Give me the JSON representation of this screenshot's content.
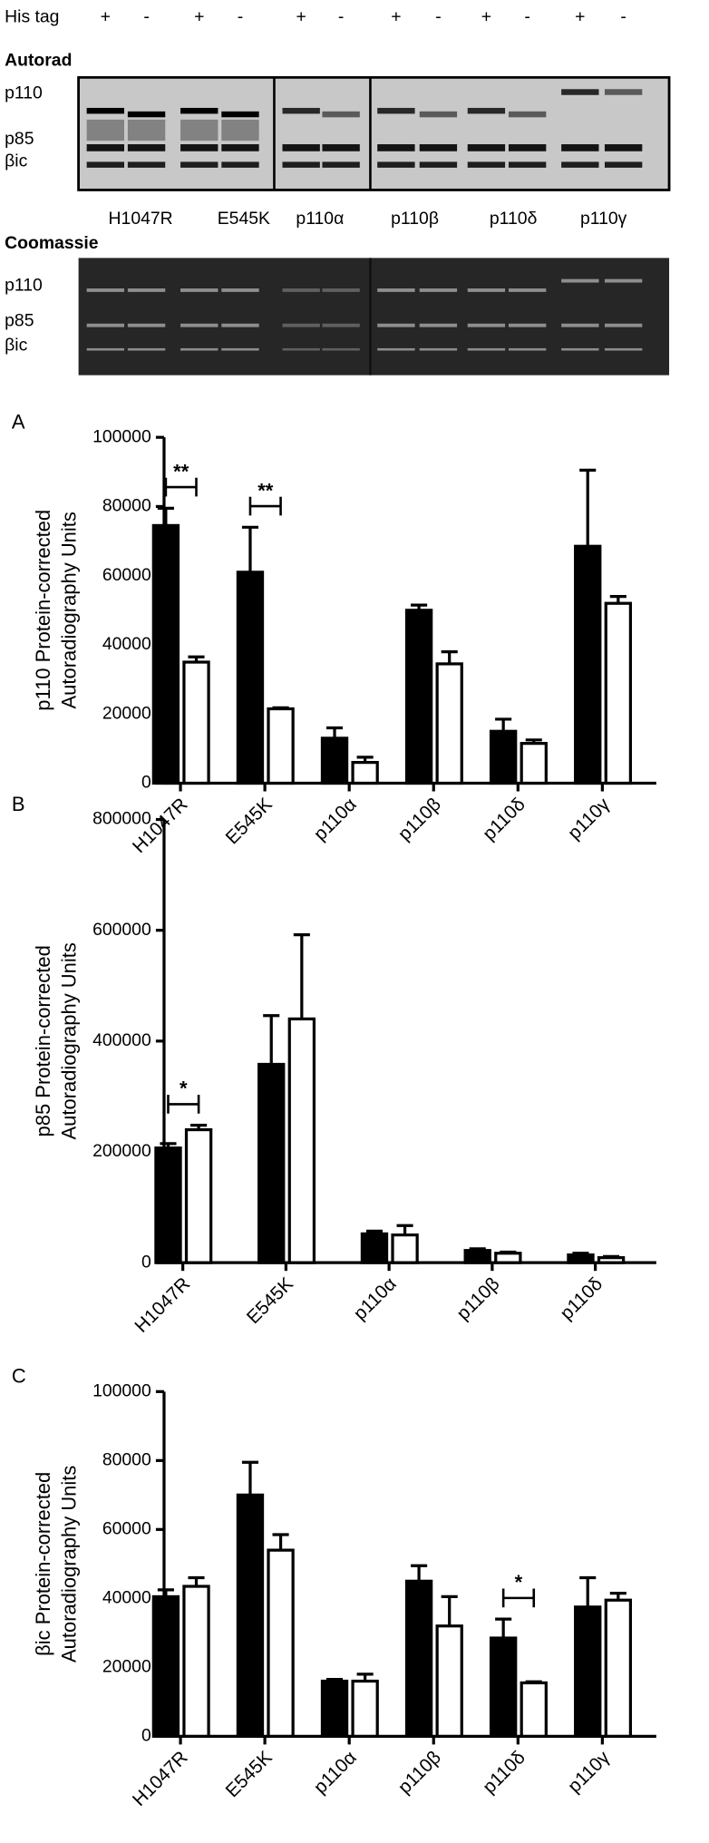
{
  "gel": {
    "his_tag_label": "His tag",
    "his_tag": [
      "+",
      "-",
      "+",
      "-",
      "+",
      "-",
      "+",
      "-",
      "+",
      "-",
      "+",
      "-"
    ],
    "autorad_title": "Autorad",
    "autorad_bands": [
      "p110",
      "p85",
      "βic"
    ],
    "lane_groups": [
      "H1047R",
      "E545K",
      "p110α",
      "p110β",
      "p110δ",
      "p110γ"
    ],
    "coomassie_title": "Coomassie",
    "coomassie_bands": [
      "p110",
      "p85",
      "βic"
    ]
  },
  "chart_data": [
    {
      "type": "bar",
      "panel_label": "A",
      "ylabel": [
        "p110 Protein-corrected",
        "Autoradiography Units"
      ],
      "categories": [
        "H1047R",
        "E545K",
        "p110α",
        "p110β",
        "p110δ",
        "p110γ"
      ],
      "series": [
        {
          "color": "#000000",
          "values": [
            74500,
            61000,
            13000,
            50000,
            15000,
            68500
          ],
          "errors": [
            5000,
            13000,
            3000,
            1500,
            3500,
            22000
          ]
        },
        {
          "color": "#ffffff",
          "values": [
            35000,
            21500,
            6000,
            34500,
            11500,
            52000
          ],
          "errors": [
            1500,
            300,
            1500,
            3500,
            1000,
            2000
          ]
        }
      ],
      "significance": [
        {
          "category": "H1047R",
          "label": "**"
        },
        {
          "category": "E545K",
          "label": "**"
        }
      ],
      "ylim": [
        0,
        100000
      ],
      "yticks": [
        0,
        20000,
        40000,
        60000,
        80000,
        100000
      ]
    },
    {
      "type": "bar",
      "panel_label": "B",
      "ylabel": [
        "p85 Protein-corrected",
        "Autoradiography Units"
      ],
      "categories": [
        "H1047R",
        "E545K",
        "p110α",
        "p110β",
        "p110δ"
      ],
      "series": [
        {
          "color": "#000000",
          "values": [
            207000,
            358000,
            52000,
            22000,
            14000
          ],
          "errors": [
            8000,
            88000,
            5000,
            3000,
            3000
          ]
        },
        {
          "color": "#ffffff",
          "values": [
            240000,
            440000,
            50000,
            17000,
            9000
          ],
          "errors": [
            8000,
            152000,
            17000,
            2000,
            2000
          ]
        }
      ],
      "significance": [
        {
          "category": "H1047R",
          "label": "*"
        }
      ],
      "ylim": [
        0,
        800000
      ],
      "yticks": [
        0,
        200000,
        400000,
        600000,
        800000
      ]
    },
    {
      "type": "bar",
      "panel_label": "C",
      "ylabel": [
        "βic Protein-corrected",
        "Autoradiography Units"
      ],
      "categories": [
        "H1047R",
        "E545K",
        "p110α",
        "p110β",
        "p110δ",
        "p110γ"
      ],
      "series": [
        {
          "color": "#000000",
          "values": [
            40500,
            70000,
            16000,
            45000,
            28500,
            37500
          ],
          "errors": [
            2000,
            9500,
            500,
            4500,
            5500,
            8500
          ]
        },
        {
          "color": "#ffffff",
          "values": [
            43500,
            54000,
            16000,
            32000,
            15500,
            39500
          ],
          "errors": [
            2500,
            4500,
            2000,
            8500,
            300,
            2000
          ]
        }
      ],
      "significance": [
        {
          "category": "p110δ",
          "label": "*"
        }
      ],
      "ylim": [
        0,
        100000
      ],
      "yticks": [
        0,
        20000,
        40000,
        60000,
        80000,
        100000
      ]
    }
  ]
}
